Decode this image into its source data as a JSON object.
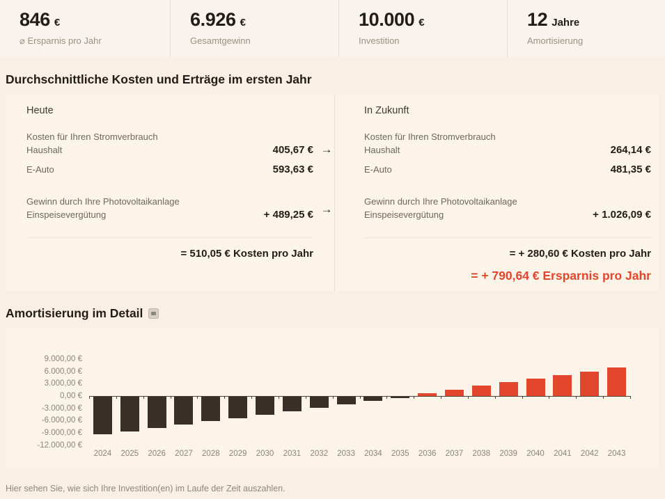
{
  "stats": [
    {
      "value": "846",
      "unit": "€",
      "label": "⌀ Ersparnis pro Jahr"
    },
    {
      "value": "6.926",
      "unit": "€",
      "label": "Gesamtgewinn"
    },
    {
      "value": "10.000",
      "unit": "€",
      "label": "Investition"
    },
    {
      "value": "12",
      "unit": "Jahre",
      "label": "Amortisierung"
    }
  ],
  "costs_section": {
    "title": "Durchschnittliche Kosten und Erträge im ersten Jahr",
    "arrow": "→",
    "today": {
      "heading": "Heute",
      "groups": [
        {
          "title": "Kosten für Ihren Stromverbrauch",
          "rows": [
            {
              "label": "Haushalt",
              "value": "405,67 €"
            },
            {
              "label": "E-Auto",
              "value": "593,63 €"
            }
          ]
        },
        {
          "title": "Gewinn durch Ihre Photovoltaikanlage",
          "rows": [
            {
              "label": "Einspeisevergütung",
              "value": "+ 489,25 €"
            }
          ]
        }
      ],
      "total": "= 510,05 € Kosten pro Jahr"
    },
    "future": {
      "heading": "In Zukunft",
      "groups": [
        {
          "title": "Kosten für Ihren Stromverbrauch",
          "rows": [
            {
              "label": "Haushalt",
              "value": "264,14 €"
            },
            {
              "label": "E-Auto",
              "value": "481,35 €"
            }
          ]
        },
        {
          "title": "Gewinn durch Ihre Photovoltaikanlage",
          "rows": [
            {
              "label": "Einspeisevergütung",
              "value": "+ 1.026,09 €"
            }
          ]
        }
      ],
      "total": "= + 280,60 € Kosten pro Jahr",
      "savings_total": "= + 790,64 € Ersparnis pro Jahr"
    }
  },
  "amortization_section": {
    "title": "Amortisierung im Detail",
    "footnote": "Hier sehen Sie, wie sich Ihre Investition(en) im Laufe der Zeit auszahlen."
  },
  "chart_data": {
    "type": "bar",
    "title": "Amortisierung im Detail",
    "xlabel": "",
    "ylabel": "",
    "categories": [
      "2024",
      "2025",
      "2026",
      "2027",
      "2028",
      "2029",
      "2030",
      "2031",
      "2032",
      "2033",
      "2034",
      "2035",
      "2036",
      "2037",
      "2038",
      "2039",
      "2040",
      "2041",
      "2042",
      "2043"
    ],
    "values": [
      -9209.36,
      -8413.19,
      -7611.44,
      -6804.08,
      -5991.07,
      -5172.37,
      -4347.94,
      -3517.73,
      -2681.72,
      -1839.85,
      -992.09,
      -138.39,
      721.28,
      1586.97,
      2458.72,
      3336.57,
      4220.57,
      5110.75,
      6007.16,
      6926.0
    ],
    "y_ticks": [
      9000,
      6000,
      3000,
      0,
      -3000,
      -6000,
      -9000,
      -12000
    ],
    "y_tick_labels": [
      "9.000,00 €",
      "6.000,00 €",
      "3.000,00 €",
      "0,00 €",
      "-3.000,00 €",
      "-6.000,00 €",
      "-9.000,00 €",
      "-12.000,00 €"
    ],
    "ylim": [
      -12600,
      9900
    ],
    "grid": false,
    "legend": "none",
    "colors": {
      "negative": "#383028",
      "positive": "#e2462c"
    }
  },
  "colors": {
    "accent_red": "#e2462c",
    "bar_negative": "#383028",
    "page_background": "#faefe4",
    "strip_background": "#f8f3ec",
    "card_background": "#fcf4e9"
  }
}
